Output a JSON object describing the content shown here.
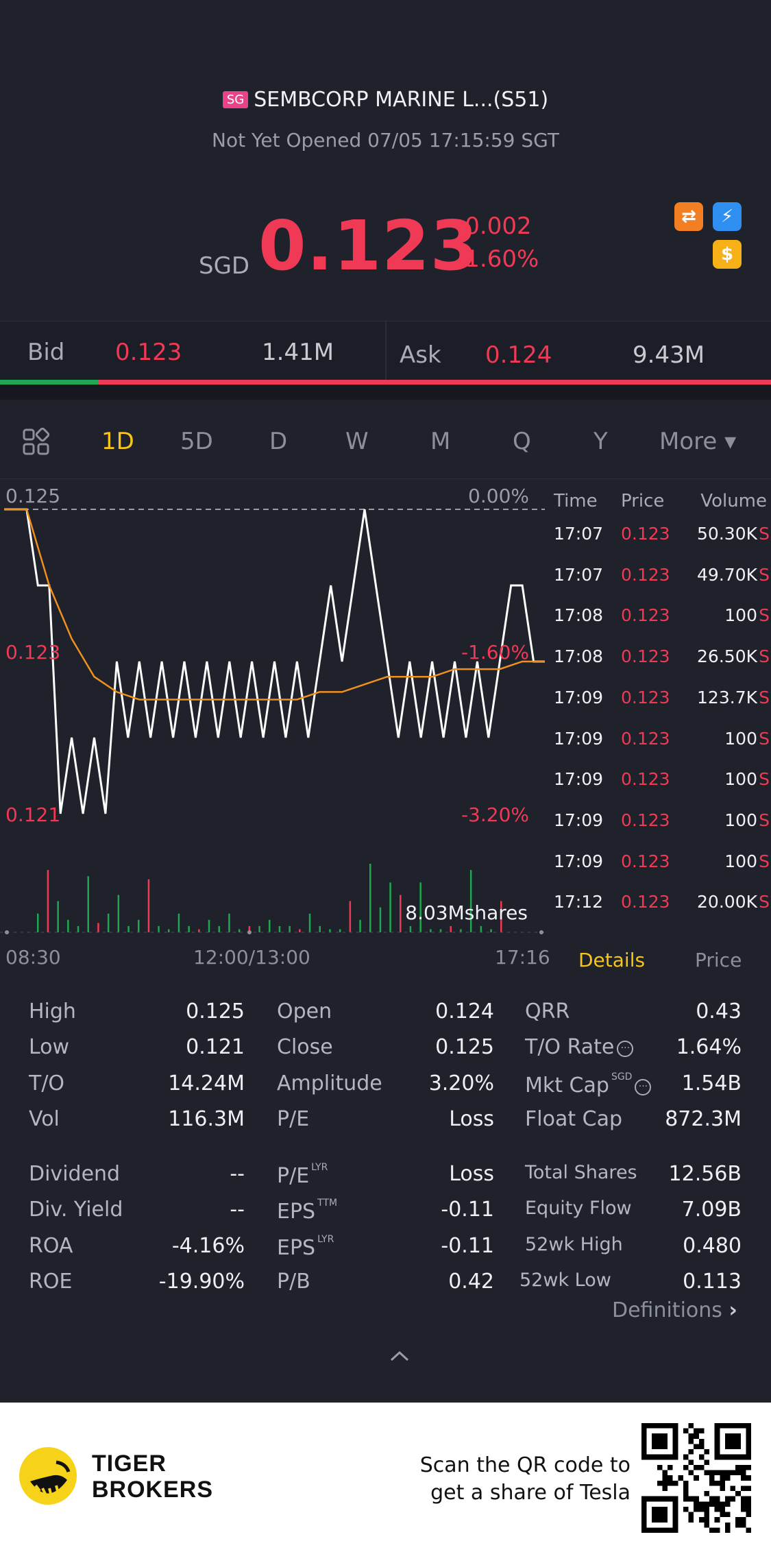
{
  "header": {
    "market_tag": "SG",
    "title": "SEMBCORP MARINE L...(S51)",
    "status": "Not Yet Opened 07/05 17:15:59 SGT"
  },
  "quote": {
    "currency": "SGD",
    "last_price": "0.123",
    "change_abs": "-0.002",
    "change_pct": "-1.60%"
  },
  "bid_ask": {
    "bid_label": "Bid",
    "bid_price": "0.123",
    "bid_size": "1.41M",
    "ask_label": "Ask",
    "ask_price": "0.124",
    "ask_size": "9.43M",
    "bid_ratio": 0.128
  },
  "period_tabs": [
    "1D",
    "5D",
    "D",
    "W",
    "M",
    "Q",
    "Y",
    "More ▾"
  ],
  "active_tab": "1D",
  "chart_labels": {
    "y_top": "0.125",
    "pct_top": "0.00%",
    "y_mid": "0.123",
    "pct_mid": "-1.60%",
    "y_low": "0.121",
    "pct_low": "-3.20%",
    "volume_total": "8.03Mshares",
    "time_start": "08:30",
    "time_mid": "12:00/13:00",
    "time_end": "17:16"
  },
  "chart_data": {
    "type": "line",
    "ylim": [
      0.121,
      0.125
    ],
    "reference_price": 0.125,
    "price_levels": [
      0.125,
      0.124,
      0.123,
      0.122,
      0.121
    ],
    "series": [
      {
        "values": [
          0.125,
          0.125,
          0.125,
          0.124,
          0.124,
          0.121,
          0.122,
          0.121,
          0.122,
          0.121,
          0.123,
          0.122,
          0.123,
          0.122,
          0.123,
          0.122,
          0.123,
          0.122,
          0.123,
          0.122,
          0.123,
          0.122,
          0.123,
          0.122,
          0.123,
          0.122,
          0.123,
          0.122,
          0.123,
          0.124,
          0.123,
          0.124,
          0.125,
          0.124,
          0.123,
          0.122,
          0.123,
          0.122,
          0.123,
          0.122,
          0.123,
          0.122,
          0.123,
          0.122,
          0.123,
          0.124,
          0.124,
          0.123,
          0.123
        ]
      },
      {
        "values": [
          0.125,
          0.125,
          0.124,
          0.1233,
          0.1228,
          0.1226,
          0.1225,
          0.1225,
          0.1225,
          0.1225,
          0.1225,
          0.1225,
          0.1225,
          0.1225,
          0.1226,
          0.1226,
          0.1227,
          0.1228,
          0.1228,
          0.1228,
          0.1229,
          0.1229,
          0.1229,
          0.123,
          0.123
        ]
      }
    ],
    "volume": [
      0.3,
      1.0,
      0.5,
      0.2,
      0.1,
      0.9,
      0.15,
      0.3,
      0.6,
      0.1,
      0.2,
      0.85,
      0.1,
      0.05,
      0.3,
      0.1,
      0.05,
      0.2,
      0.1,
      0.3,
      0.05,
      0.1,
      0.1,
      0.2,
      0.1,
      0.1,
      0.05,
      0.3,
      0.1,
      0.05,
      0.05,
      0.5,
      0.2,
      1.1,
      0.4,
      0.8,
      0.6,
      0.1,
      0.8,
      0.05,
      0.05,
      0.1,
      0.05,
      1.0,
      0.1,
      0.05,
      0.5
    ]
  },
  "trades": {
    "headers": [
      "Time",
      "Price",
      "Volume"
    ],
    "rows": [
      {
        "time": "17:07",
        "price": "0.123",
        "volume": "50.30K",
        "side": "S"
      },
      {
        "time": "17:07",
        "price": "0.123",
        "volume": "49.70K",
        "side": "S"
      },
      {
        "time": "17:08",
        "price": "0.123",
        "volume": "100",
        "side": "S"
      },
      {
        "time": "17:08",
        "price": "0.123",
        "volume": "26.50K",
        "side": "S"
      },
      {
        "time": "17:09",
        "price": "0.123",
        "volume": "123.7K",
        "side": "S"
      },
      {
        "time": "17:09",
        "price": "0.123",
        "volume": "100",
        "side": "S"
      },
      {
        "time": "17:09",
        "price": "0.123",
        "volume": "100",
        "side": "S"
      },
      {
        "time": "17:09",
        "price": "0.123",
        "volume": "100",
        "side": "S"
      },
      {
        "time": "17:09",
        "price": "0.123",
        "volume": "100",
        "side": "S"
      },
      {
        "time": "17:12",
        "price": "0.123",
        "volume": "20.00K",
        "side": "S"
      }
    ]
  },
  "panel_tabs": {
    "details": "Details",
    "price": "Price"
  },
  "stats": {
    "col1": [
      {
        "label": "High",
        "value": "0.125"
      },
      {
        "label": "Low",
        "value": "0.121"
      },
      {
        "label": "T/O",
        "value": "14.24M"
      },
      {
        "label": "Vol",
        "value": "116.3M"
      },
      {
        "label": "Dividend",
        "value": "--"
      },
      {
        "label": "Div. Yield",
        "value": "--"
      },
      {
        "label": "ROA",
        "value": "-4.16%"
      },
      {
        "label": "ROE",
        "value": "-19.90%"
      }
    ],
    "col2": [
      {
        "label": "Open",
        "value": "0.124"
      },
      {
        "label": "Close",
        "value": "0.125"
      },
      {
        "label": "Amplitude",
        "value": "3.20%"
      },
      {
        "label": "P/E",
        "value": "Loss"
      },
      {
        "label": "P/E",
        "sup": "LYR",
        "value": "Loss"
      },
      {
        "label": "EPS",
        "sup": "TTM",
        "value": "-0.11"
      },
      {
        "label": "EPS",
        "sup": "LYR",
        "value": "-0.11"
      },
      {
        "label": "P/B",
        "value": "0.42"
      }
    ],
    "col3": [
      {
        "label": "QRR",
        "value": "0.43"
      },
      {
        "label": "T/O Rate",
        "value": "1.64%"
      },
      {
        "label": "Mkt Cap",
        "sup": "SGD",
        "value": "1.54B"
      },
      {
        "label": "Float Cap",
        "value": "872.3M"
      },
      {
        "label": "Total Shares",
        "value": "12.56B"
      },
      {
        "label": "Equity Flow",
        "value": "7.09B"
      },
      {
        "label": "52wk High",
        "value": "0.480"
      },
      {
        "label": "52wk Low",
        "value": "0.113"
      }
    ],
    "definitions": "Definitions"
  },
  "footer": {
    "brand_line1": "TIGER",
    "brand_line2": "BROKERS",
    "promo_line1": "Scan the QR code to",
    "promo_line2": "get a share of Tesla"
  },
  "colors": {
    "background": "#1f212b",
    "down_red": "#f03a55",
    "up_green": "#1fa84f",
    "accent_yellow": "#f5c518",
    "avg_line_orange": "#f0901e"
  },
  "icons": [
    "grid-icon",
    "info-circle-icon",
    "chevron-right-icon",
    "chevron-up-icon",
    "tiger-logo-icon",
    "qr-code-icon"
  ]
}
